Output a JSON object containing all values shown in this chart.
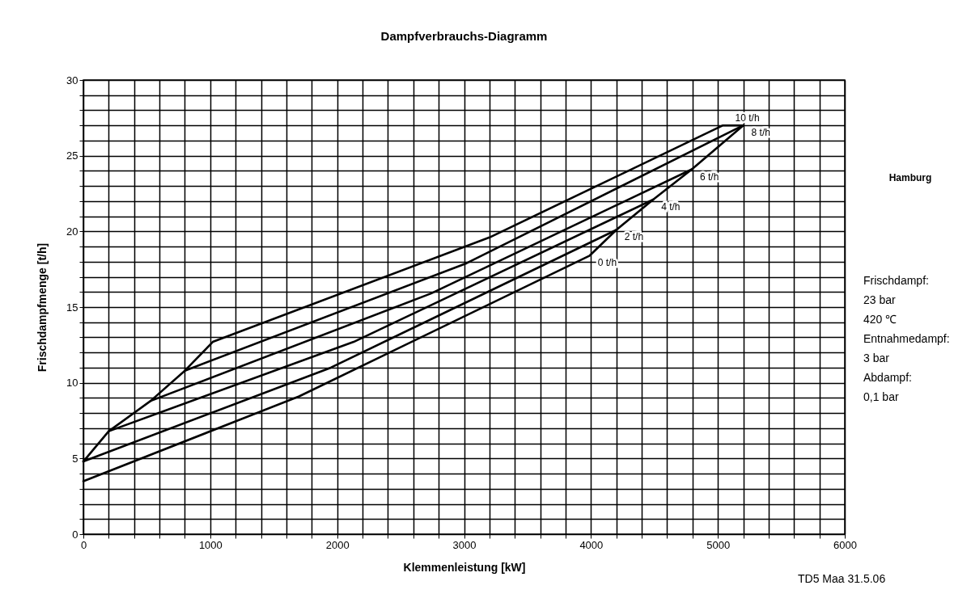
{
  "chart_data": {
    "type": "line",
    "title": "Dampfverbrauchs-Diagramm",
    "xlabel": "Klemmenleistung [kW]",
    "ylabel": "Frischdampfmenge [t/h]",
    "series": [
      {
        "name": "0 t/h",
        "color": "#000000",
        "x": [
          0,
          1700,
          3990,
          4200,
          4490,
          4795,
          5200
        ],
        "values": [
          3.5,
          9.1,
          18.4,
          20.1,
          22.1,
          24.1,
          27.0
        ]
      },
      {
        "name": "2 t/h",
        "color": "#000000",
        "x": [
          0,
          1950,
          4200
        ],
        "values": [
          4.8,
          11.0,
          20.1
        ]
      },
      {
        "name": "4 t/h",
        "color": "#000000",
        "x": [
          200,
          2130,
          4490
        ],
        "values": [
          6.8,
          12.7,
          22.1
        ]
      },
      {
        "name": "6 t/h",
        "color": "#000000",
        "x": [
          530,
          2740,
          4795
        ],
        "values": [
          8.8,
          15.9,
          24.1
        ]
      },
      {
        "name": "8 t/h",
        "color": "#000000",
        "x": [
          800,
          3020,
          5200
        ],
        "values": [
          10.8,
          17.9,
          27.0
        ]
      },
      {
        "name": "10 t/h",
        "color": "#000000",
        "x": [
          0,
          200,
          530,
          800,
          1020,
          3200,
          5040,
          5200
        ],
        "values": [
          4.8,
          6.8,
          8.8,
          10.8,
          12.7,
          19.6,
          27.0,
          27.0
        ]
      }
    ],
    "xlim": [
      0,
      6000
    ],
    "xticks": [
      0,
      {
        "value": 200,
        "label": null
      },
      {
        "value": 400,
        "label": null
      },
      {
        "value": 600,
        "label": null
      },
      {
        "value": 800,
        "label": null
      },
      1000,
      {
        "value": 1200,
        "label": null
      },
      {
        "value": 1400,
        "label": null
      },
      {
        "value": 1600,
        "label": null
      },
      {
        "value": 1800,
        "label": null
      },
      2000,
      {
        "value": 2200,
        "label": null
      },
      {
        "value": 2400,
        "label": null
      },
      {
        "value": 2600,
        "label": null
      },
      {
        "value": 2800,
        "label": null
      },
      3000,
      {
        "value": 3200,
        "label": null
      },
      {
        "value": 3400,
        "label": null
      },
      {
        "value": 3600,
        "label": null
      },
      {
        "value": 3800,
        "label": null
      },
      4000,
      {
        "value": 4200,
        "label": null
      },
      {
        "value": 4400,
        "label": null
      },
      {
        "value": 4600,
        "label": null
      },
      {
        "value": 4800,
        "label": null
      },
      5000,
      {
        "value": 5200,
        "label": null
      },
      {
        "value": 5400,
        "label": null
      },
      {
        "value": 5600,
        "label": null
      },
      {
        "value": 5800,
        "label": null
      },
      6000
    ],
    "ylim": [
      0,
      30
    ],
    "yticks": [
      0,
      {
        "value": 1,
        "label": null
      },
      {
        "value": 2,
        "label": null
      },
      {
        "value": 3,
        "label": null
      },
      {
        "value": 4,
        "label": null
      },
      5,
      {
        "value": 6,
        "label": null
      },
      {
        "value": 7,
        "label": null
      },
      {
        "value": 8,
        "label": null
      },
      {
        "value": 9,
        "label": null
      },
      10,
      {
        "value": 11,
        "label": null
      },
      {
        "value": 12,
        "label": null
      },
      {
        "value": 13,
        "label": null
      },
      {
        "value": 14,
        "label": null
      },
      15,
      {
        "value": 16,
        "label": null
      },
      {
        "value": 17,
        "label": null
      },
      {
        "value": 18,
        "label": null
      },
      {
        "value": 19,
        "label": null
      },
      20,
      {
        "value": 21,
        "label": null
      },
      {
        "value": 22,
        "label": null
      },
      {
        "value": 23,
        "label": null
      },
      {
        "value": 24,
        "label": null
      },
      25,
      {
        "value": 26,
        "label": null
      },
      {
        "value": 27,
        "label": null
      },
      {
        "value": 28,
        "label": null
      },
      {
        "value": 29,
        "label": null
      },
      30
    ],
    "grid": true,
    "annotations": [
      "Hamburg",
      "Frischdampf:",
      "23    bar",
      "420    ℃",
      "Entnahmedampf:",
      "3    bar",
      "Abdampf:",
      "0,1    bar",
      "TD5 Maa 31.5.06"
    ]
  }
}
